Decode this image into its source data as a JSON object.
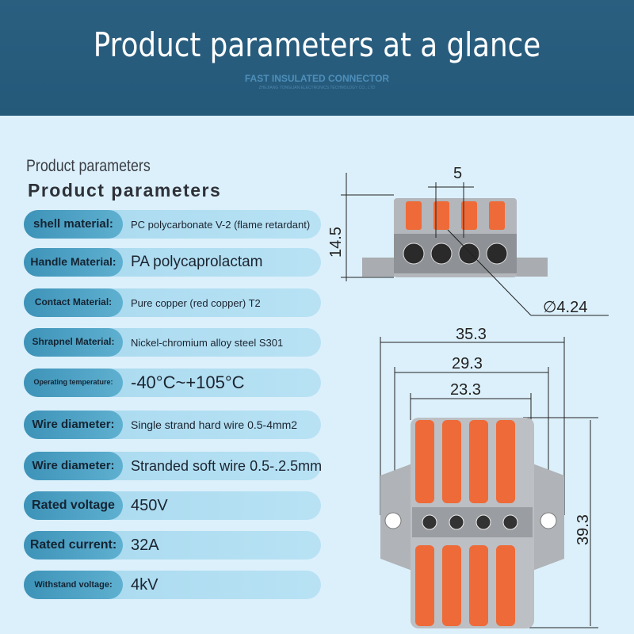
{
  "header": {
    "title": "Product parameters at a glance",
    "subtitle": "FAST INSULATED CONNECTOR",
    "company": "ZHEJIANG TONGLIAN ELECTRONICS TECHNOLOGY CO., LTD"
  },
  "section": {
    "title_small": "Product parameters",
    "title_large": "Product parameters"
  },
  "params": [
    {
      "label": "shell material:",
      "value": "PC polycarbonate V-2 (flame retardant)"
    },
    {
      "label": "Handle Material:",
      "value": "PA polycaprolactam"
    },
    {
      "label": "Contact Material:",
      "value": "Pure copper (red copper) T2"
    },
    {
      "label": "Shrapnel Material:",
      "value": "Nickel-chromium alloy steel S301"
    },
    {
      "label": "Operating temperature:",
      "value": "-40°C~+105°C"
    },
    {
      "label": "Wire diameter:",
      "value": "Single strand hard wire 0.5-4mm2"
    },
    {
      "label": "Wire diameter:",
      "value": "Stranded soft wire 0.5-.2.5mm"
    },
    {
      "label": "Rated voltage",
      "value": "450V"
    },
    {
      "label": "Rated current:",
      "value": "32A"
    },
    {
      "label": "Withstand voltage:",
      "value": "4kV"
    }
  ],
  "dimensions": {
    "pitch": "5",
    "height": "14.5",
    "hole": "∅4.24",
    "total_width": "35.3",
    "hole_spacing": "29.3",
    "body_width": "23.3",
    "length": "39.3"
  },
  "colors": {
    "header": "#2b5f80",
    "background": "#dcf0fb",
    "lever": "#ee6a38",
    "housing": "#a9acb0"
  }
}
